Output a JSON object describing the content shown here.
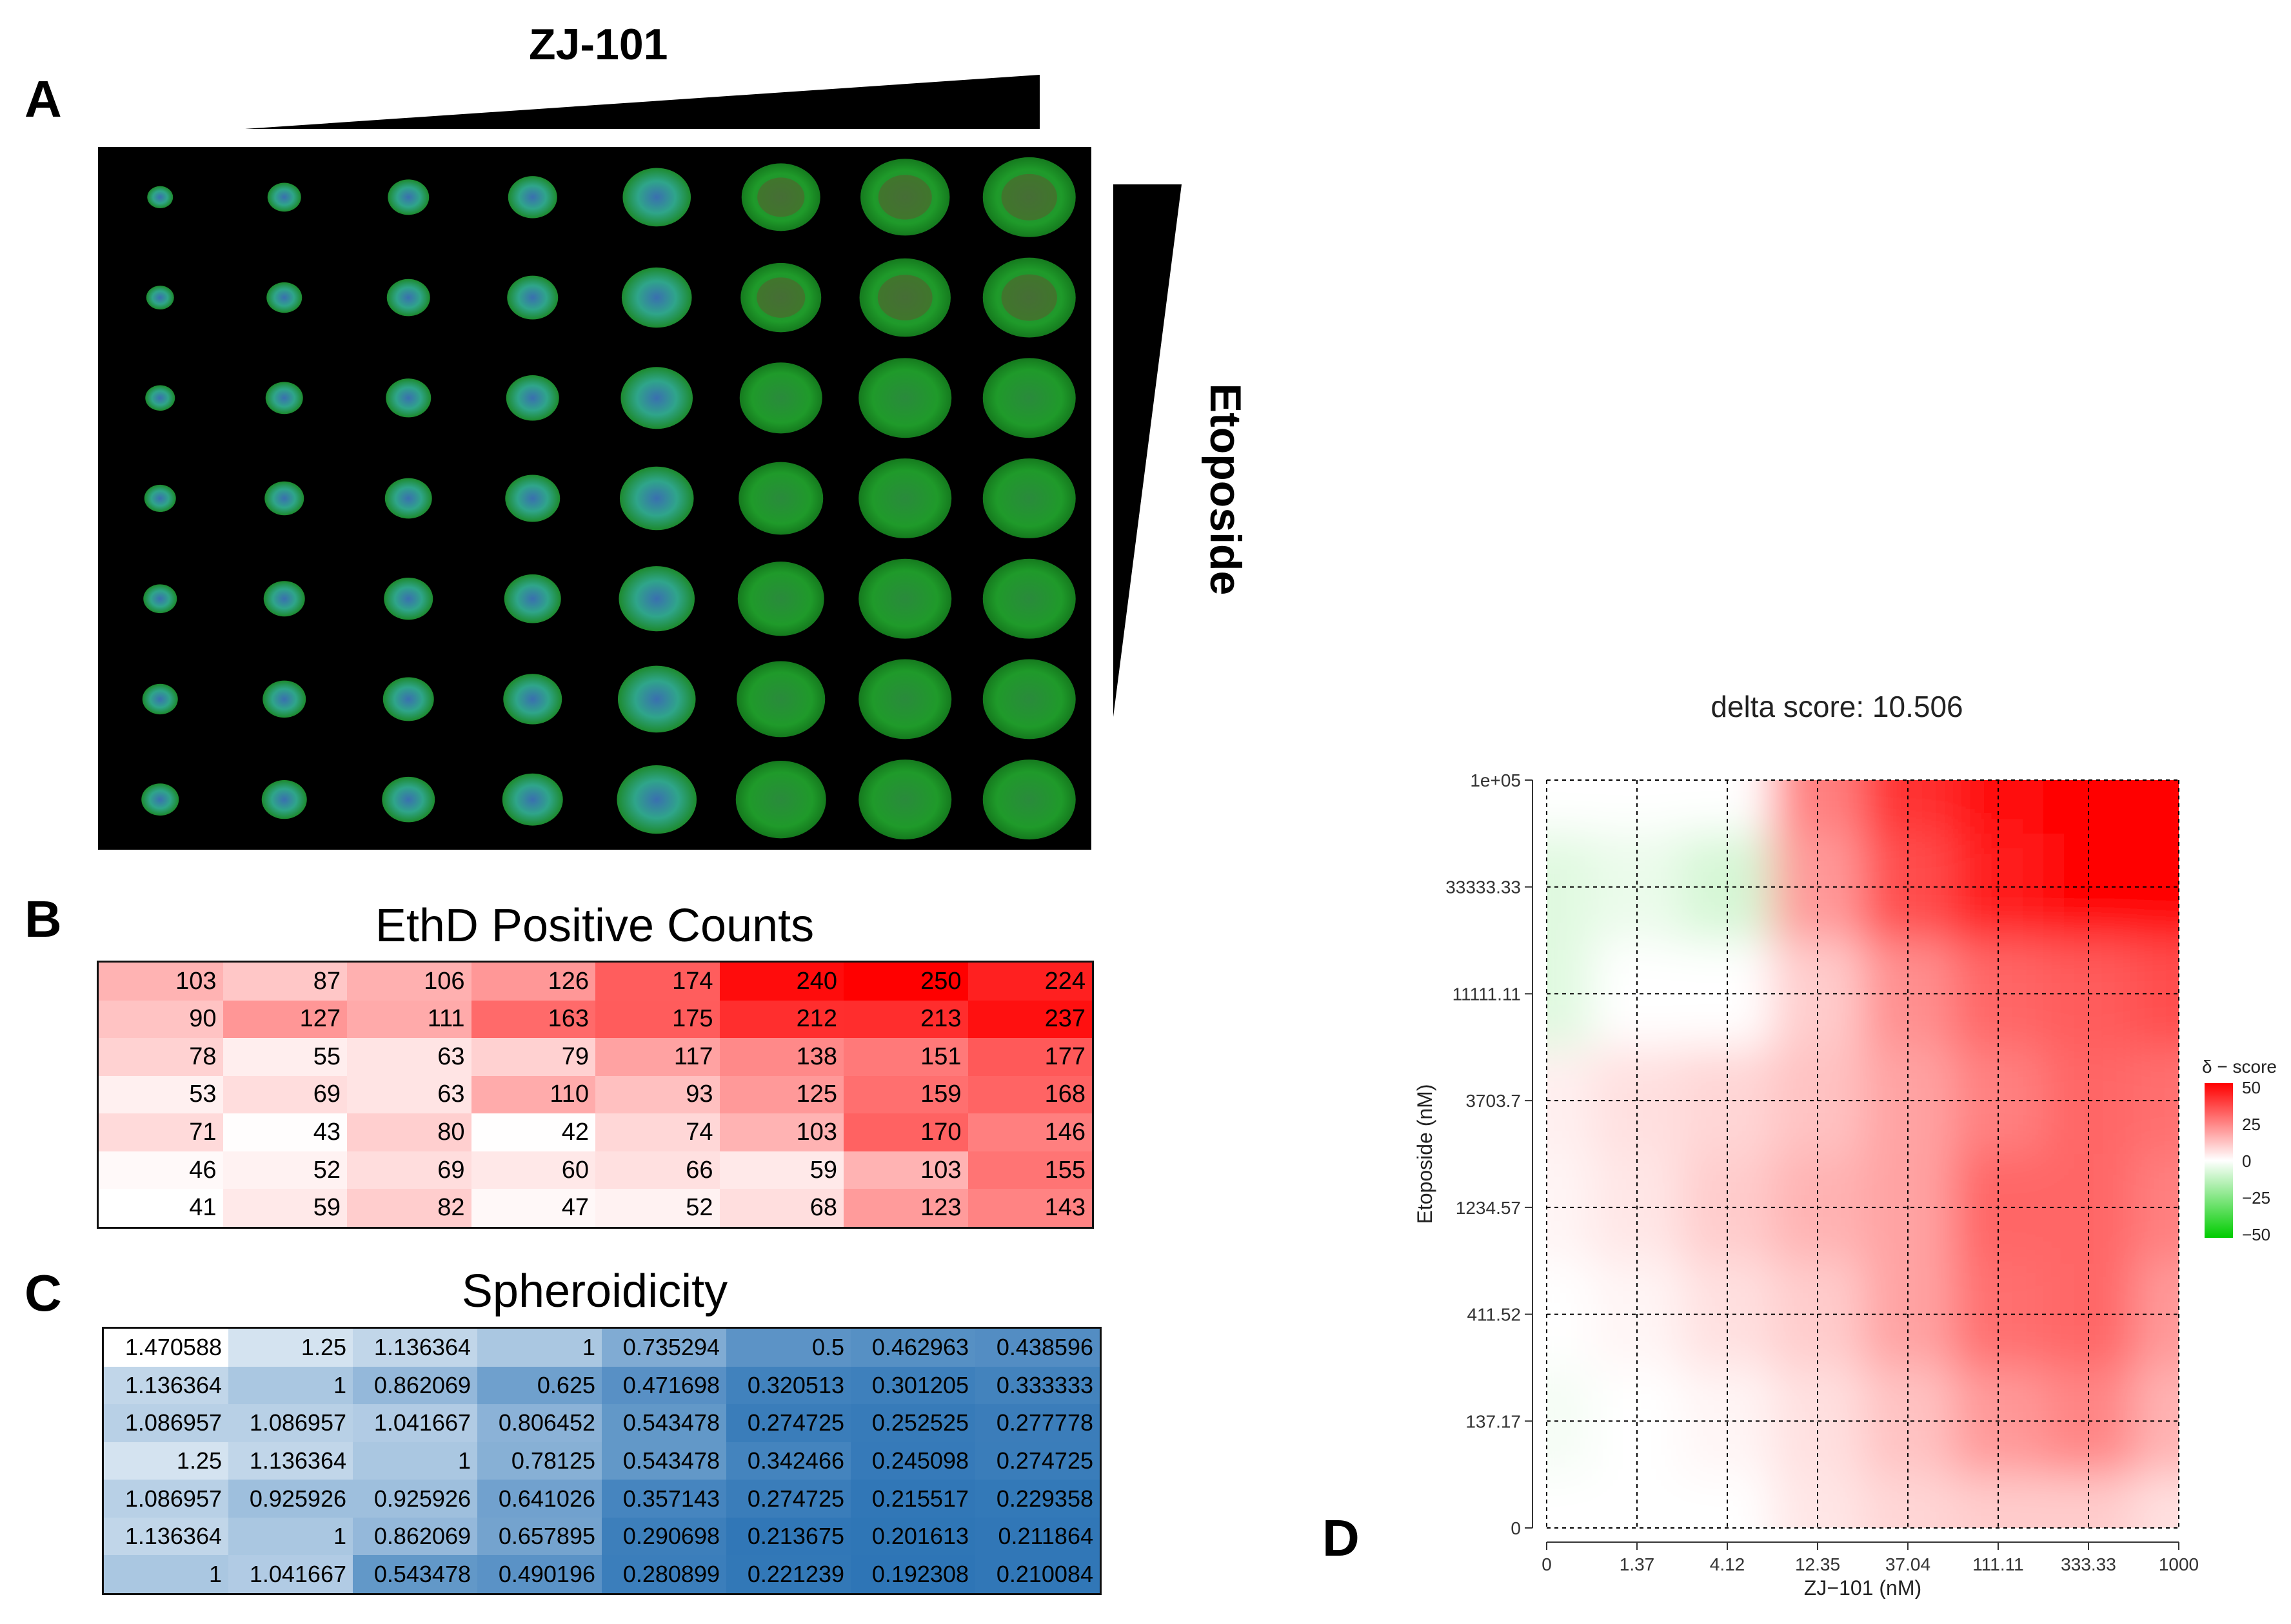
{
  "panels": {
    "a": "A",
    "b": "B",
    "c": "C",
    "d": "D"
  },
  "labels": {
    "top_drug": "ZJ-101",
    "side_drug": "Etoposide"
  },
  "micrograph": {
    "rows": 7,
    "cols": 8,
    "background": "#000000"
  },
  "ethd": {
    "title": "EthD Positive Counts",
    "rows": [
      [
        103,
        87,
        106,
        126,
        174,
        240,
        250,
        224
      ],
      [
        90,
        127,
        111,
        163,
        175,
        212,
        213,
        237
      ],
      [
        78,
        55,
        63,
        79,
        117,
        138,
        151,
        177
      ],
      [
        53,
        69,
        63,
        110,
        93,
        125,
        159,
        168
      ],
      [
        71,
        43,
        80,
        42,
        74,
        103,
        170,
        146
      ],
      [
        46,
        52,
        69,
        60,
        66,
        59,
        103,
        155
      ],
      [
        41,
        59,
        82,
        47,
        52,
        68,
        123,
        143
      ]
    ],
    "min": 41,
    "max": 250,
    "color_high": "#ff0000",
    "color_low": "#ffffff"
  },
  "sph": {
    "title": "Spheroidicity",
    "rows": [
      [
        "1.470588",
        "1.25",
        "1.136364",
        "1",
        "0.735294",
        "0.5",
        "0.462963",
        "0.438596"
      ],
      [
        "1.136364",
        "1",
        "0.862069",
        "0.625",
        "0.471698",
        "0.320513",
        "0.301205",
        "0.333333"
      ],
      [
        "1.086957",
        "1.086957",
        "1.041667",
        "0.806452",
        "0.543478",
        "0.274725",
        "0.252525",
        "0.277778"
      ],
      [
        "1.25",
        "1.136364",
        "1",
        "0.78125",
        "0.543478",
        "0.342466",
        "0.245098",
        "0.274725"
      ],
      [
        "1.086957",
        "0.925926",
        "0.925926",
        "0.641026",
        "0.357143",
        "0.274725",
        "0.215517",
        "0.229358"
      ],
      [
        "1.136364",
        "1",
        "0.862069",
        "0.657895",
        "0.290698",
        "0.213675",
        "0.201613",
        "0.211864"
      ],
      [
        "1",
        "1.041667",
        "0.543478",
        "0.490196",
        "0.280899",
        "0.221239",
        "0.192308",
        "0.210084"
      ]
    ],
    "color_high": "#2e75b6",
    "color_low": "#ffffff"
  },
  "chart_data": {
    "type": "heatmap",
    "title": "delta score: 10.506",
    "xlabel": "ZJ−101 (nM)",
    "ylabel": "Etoposide (nM)",
    "x_ticks": [
      "0",
      "1.37",
      "4.12",
      "12.35",
      "37.04",
      "111.11",
      "333.33",
      "1000"
    ],
    "y_ticks": [
      "0",
      "137.17",
      "411.52",
      "1234.57",
      "3703.7",
      "11111.11",
      "33333.33",
      "1e+05"
    ],
    "delta_scores": [
      [
        0,
        0,
        0,
        5,
        8,
        10,
        10,
        6
      ],
      [
        -2,
        0,
        2,
        6,
        12,
        20,
        24,
        15
      ],
      [
        0,
        2,
        6,
        10,
        18,
        28,
        30,
        20
      ],
      [
        2,
        5,
        10,
        15,
        18,
        30,
        30,
        25
      ],
      [
        3,
        6,
        8,
        12,
        18,
        25,
        30,
        28
      ],
      [
        -6,
        0,
        0,
        10,
        22,
        30,
        32,
        35
      ],
      [
        -6,
        -4,
        -8,
        20,
        35,
        45,
        50,
        50
      ],
      [
        0,
        0,
        0,
        25,
        40,
        48,
        50,
        50
      ]
    ],
    "legend": {
      "title": "δ − score",
      "ticks": [
        "50",
        "25",
        "0",
        "−25",
        "−50"
      ],
      "range": [
        -50,
        50
      ]
    },
    "color_pos": "#ff0000",
    "color_neg": "#00cc00"
  }
}
